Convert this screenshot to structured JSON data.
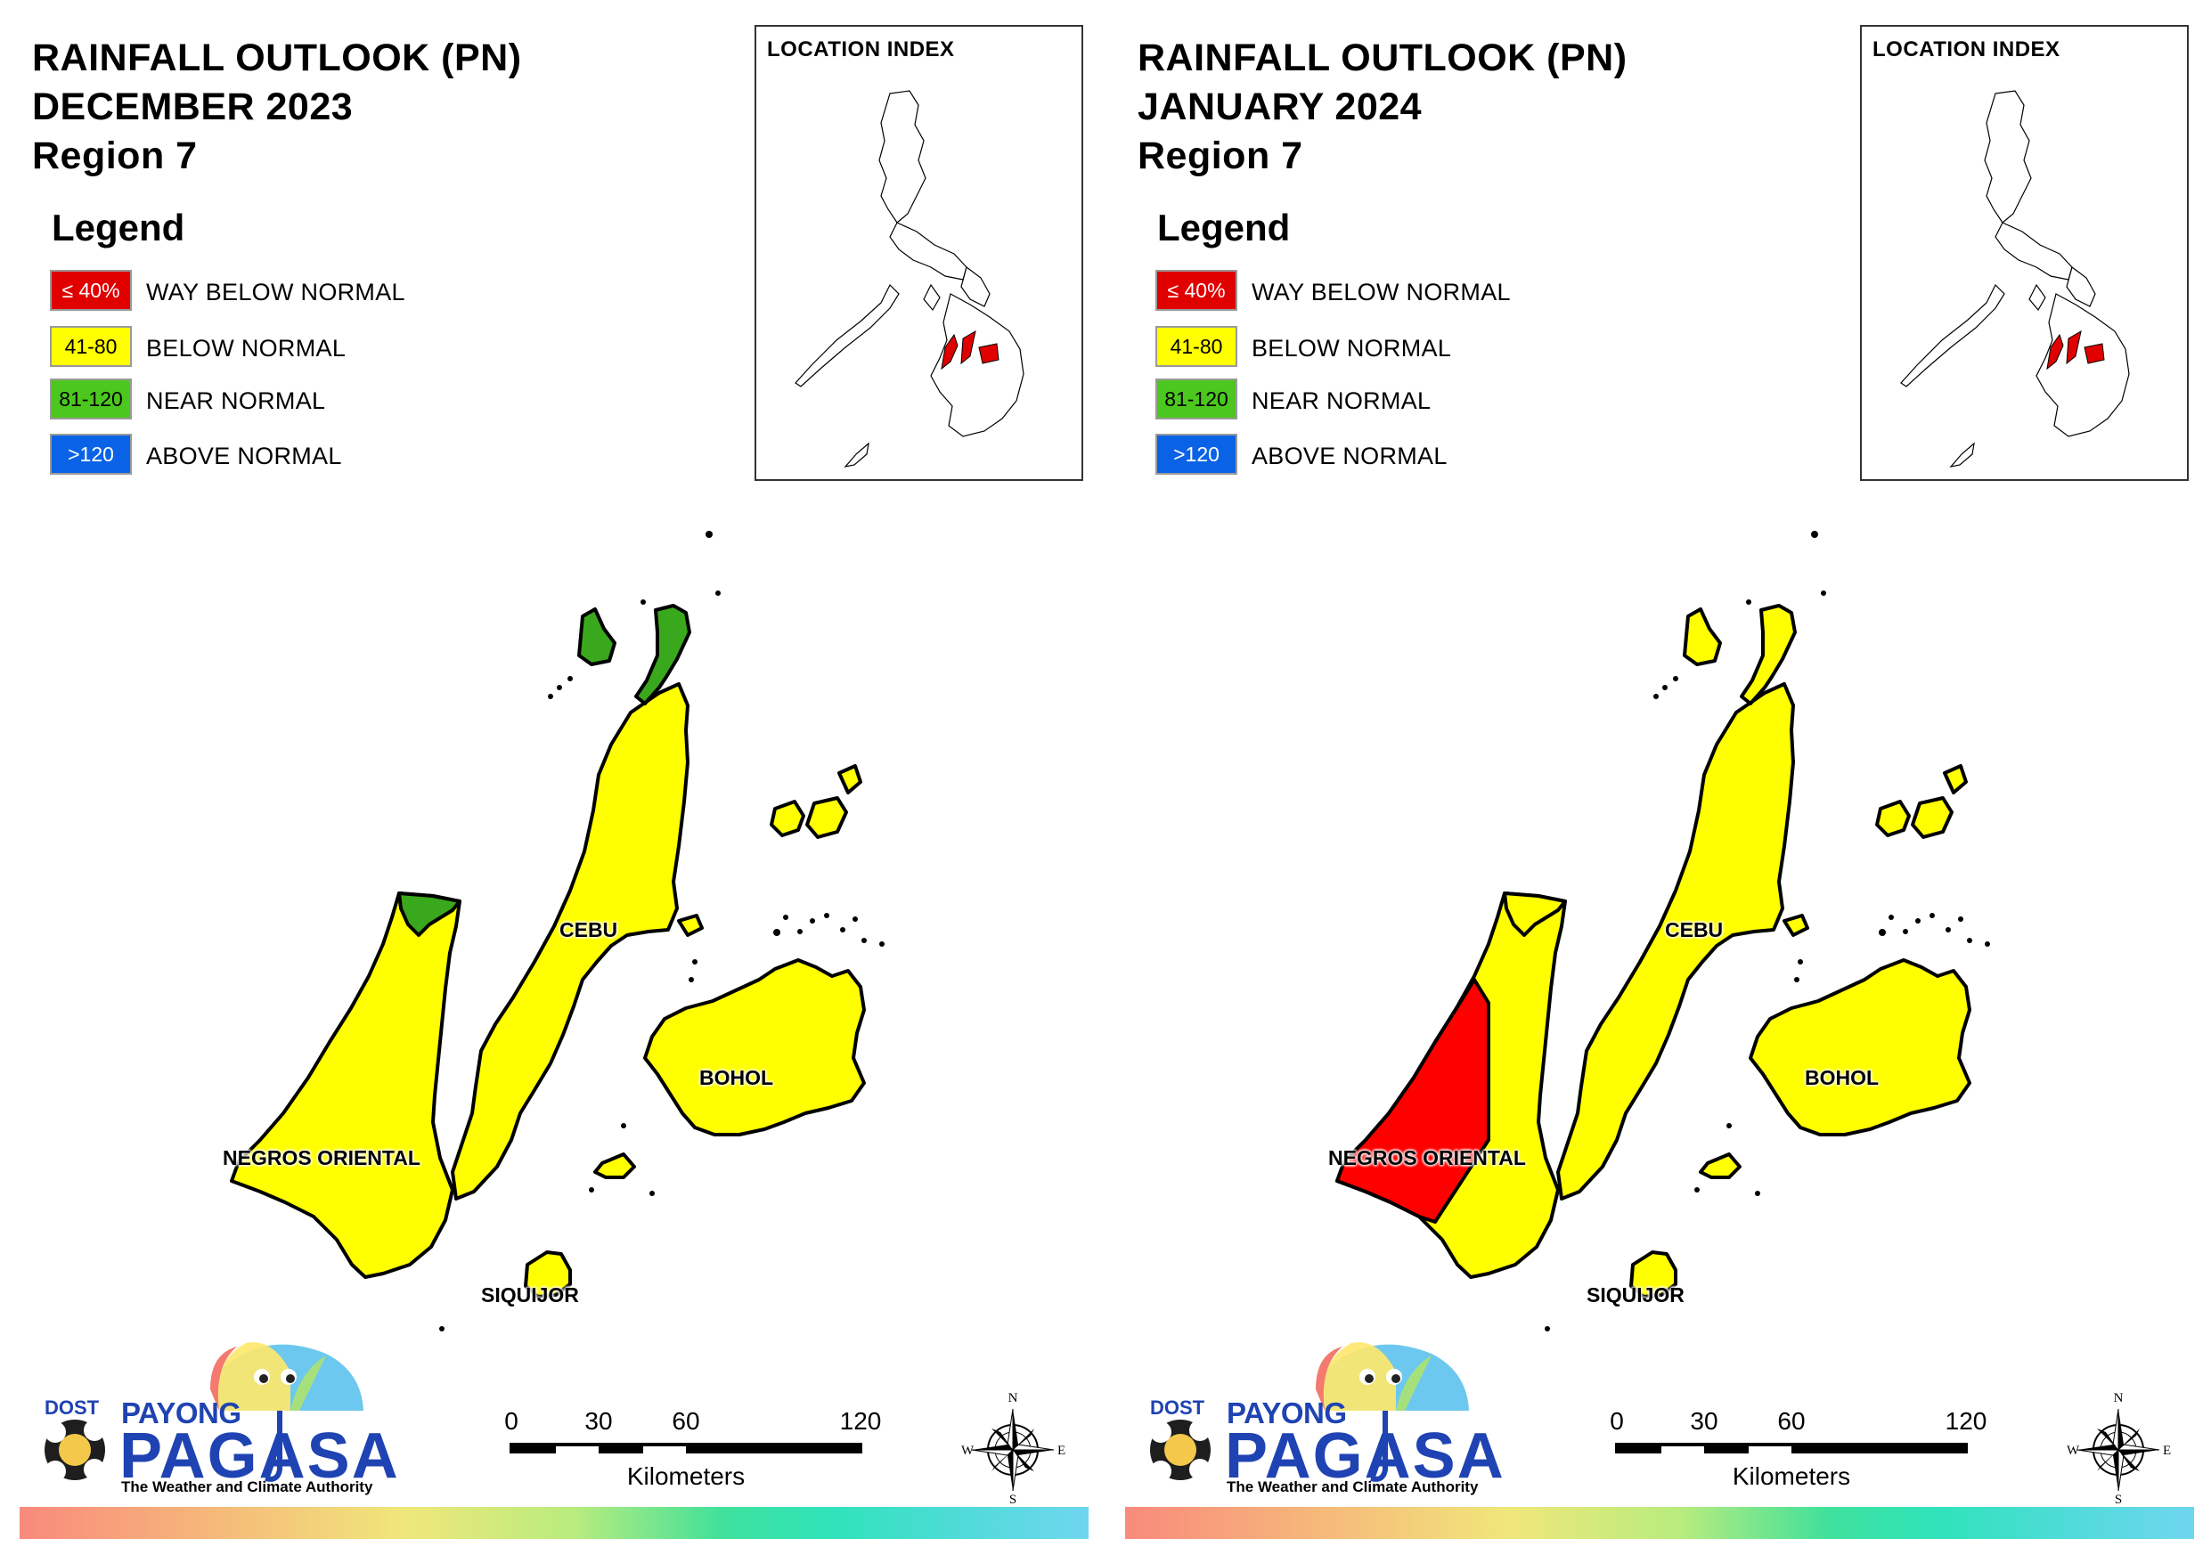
{
  "colors": {
    "way_below_normal": "#ff0000",
    "below_normal": "#ffff00",
    "near_normal": "#3aa81c",
    "above_normal": "#0a5fe6",
    "brand_blue": "#1f43b2"
  },
  "legend": {
    "title": "Legend",
    "items": [
      {
        "range": "≤ 40%",
        "label": "WAY BELOW NORMAL",
        "color": "#e00000",
        "text_color": "#ffffff"
      },
      {
        "range": "41-80",
        "label": "BELOW NORMAL",
        "color": "#ffff00",
        "text_color": "#000000"
      },
      {
        "range": "81-120",
        "label": "NEAR NORMAL",
        "color": "#4cc71f",
        "text_color": "#000000"
      },
      {
        "range": ">120",
        "label": "ABOVE NORMAL",
        "color": "#0a63e6",
        "text_color": "#ffffff"
      }
    ]
  },
  "location_index": {
    "title": "LOCATION INDEX"
  },
  "provinces": {
    "negros_oriental": "NEGROS ORIENTAL",
    "cebu": "CEBU",
    "bohol": "BOHOL",
    "siquijor": "SIQUIJOR"
  },
  "panels": [
    {
      "title_line1": "RAINFALL OUTLOOK (PN)",
      "title_line2": "DECEMBER 2023",
      "title_line3": "Region 7",
      "classification": {
        "negros_oriental": "below_normal",
        "negros_oriental_north_tip": "near_normal",
        "negros_oriental_southwest": "below_normal",
        "cebu": "below_normal",
        "cebu_north_tip": "near_normal",
        "bantayan_island": "near_normal",
        "bohol": "below_normal",
        "siquijor": "below_normal",
        "camotes_islands": "below_normal"
      }
    },
    {
      "title_line1": "RAINFALL OUTLOOK (PN)",
      "title_line2": "JANUARY 2024",
      "title_line3": "Region 7",
      "classification": {
        "negros_oriental": "below_normal",
        "negros_oriental_north_tip": "below_normal",
        "negros_oriental_southwest": "way_below_normal",
        "cebu": "below_normal",
        "cebu_north_tip": "below_normal",
        "bantayan_island": "below_normal",
        "bohol": "below_normal",
        "siquijor": "below_normal",
        "camotes_islands": "below_normal"
      }
    }
  ],
  "scale_bar": {
    "ticks": [
      "0",
      "30",
      "60",
      "120"
    ],
    "unit": "Kilometers"
  },
  "compass": {
    "n": "N",
    "s": "S",
    "e": "E",
    "w": "W"
  },
  "logo": {
    "dost": "DOST",
    "payong": "PAYONG",
    "pagasa": "PAGASA",
    "tagline": "The Weather and Climate Authority"
  }
}
